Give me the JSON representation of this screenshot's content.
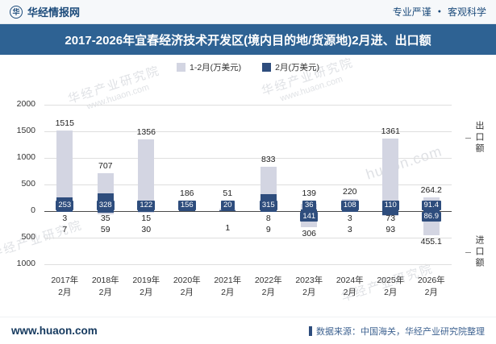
{
  "header": {
    "brand": "华经情报网",
    "logo_char": "华",
    "slogan_left": "专业严谨",
    "slogan_separator": "●",
    "slogan_right": "客观科学"
  },
  "title": "2017-2026年宜春经济技术开发区(境内目的地/货源地)2月进、出口额",
  "legend": [
    {
      "label": "1-2月(万美元)",
      "color": "#d3d5e2"
    },
    {
      "label": "2月(万美元)",
      "color": "#2e4d7d"
    }
  ],
  "chart_data": {
    "type": "bar",
    "title": "2017-2026年宜春经济技术开发区(境内目的地/货源地)2月进、出口额",
    "unit": "万美元",
    "layout": "mirrored bars: exports above zero line, imports below zero line; Feb bar overlaid on Jan-Feb bar",
    "categories": [
      {
        "year": "2017年",
        "month": "2月"
      },
      {
        "year": "2018年",
        "month": "2月"
      },
      {
        "year": "2019年",
        "month": "2月"
      },
      {
        "year": "2020年",
        "month": "2月"
      },
      {
        "year": "2021年",
        "month": "2月"
      },
      {
        "year": "2022年",
        "month": "2月"
      },
      {
        "year": "2023年",
        "month": "2月"
      },
      {
        "year": "2024年",
        "month": "2月"
      },
      {
        "year": "2025年",
        "month": "2月"
      },
      {
        "year": "2026年",
        "month": "2月"
      }
    ],
    "y_axis": {
      "max": 2000,
      "min": -1000,
      "step": 500,
      "tick_labels_absolute_value": true
    },
    "right_axis_labels": {
      "top": "出口额",
      "bottom": "进口额"
    },
    "series": [
      {
        "name": "1-2月(万美元)",
        "color": "#d3d5e2",
        "export": [
          1515,
          707,
          1356,
          186,
          51,
          833,
          139,
          220,
          1361,
          264.2
        ],
        "import": [
          7,
          59,
          30,
          null,
          1,
          9,
          306,
          3,
          93,
          455.1
        ]
      },
      {
        "name": "2月(万美元)",
        "color": "#2e4d7d",
        "export": [
          253,
          328,
          122,
          156,
          20,
          315,
          36,
          108,
          110,
          91.4
        ],
        "import": [
          3,
          35,
          15,
          null,
          null,
          8,
          141,
          3,
          73,
          86.9
        ]
      }
    ]
  },
  "watermarks": {
    "wm1_line1": "华经产业研究院",
    "wm1_line2": "www.huaon.com",
    "wm2_line1": "华经产业研究院",
    "wm2_line2": "www.huaon.com",
    "wm3": "huaon.com",
    "wm4": "华经产业研究院",
    "wm5": "华经产业研究院"
  },
  "footer": {
    "site": "www.huaon.com",
    "source": "数据来源：中国海关，华经产业研究院整理"
  }
}
